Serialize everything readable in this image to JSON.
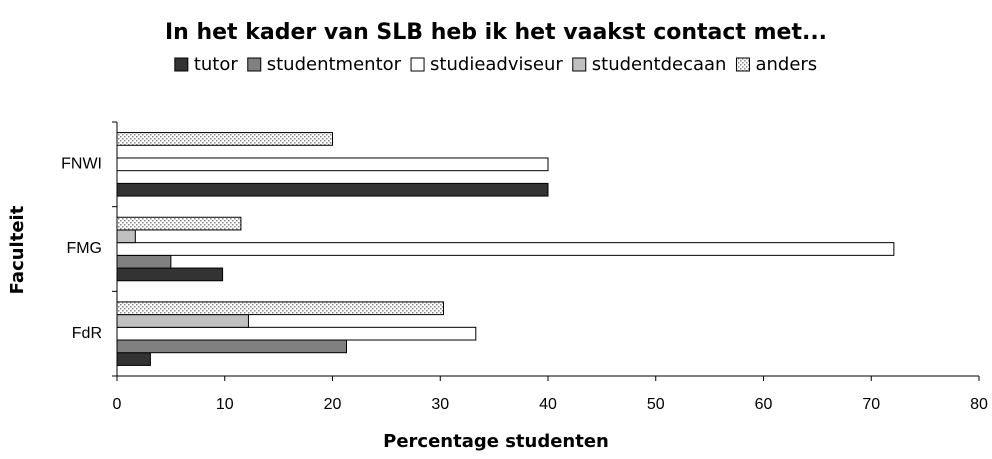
{
  "chart_data": {
    "type": "hbar",
    "title": "In het kader van SLB heb ik het vaakst contact met...",
    "xlabel": "Percentage studenten",
    "ylabel": "Faculteit",
    "categories": [
      "FdR",
      "FMG",
      "FNWI"
    ],
    "series": [
      {
        "name": "tutor",
        "color": "#333333",
        "values": [
          3.1,
          9.8,
          40
        ]
      },
      {
        "name": "studentmentor",
        "color": "#808080",
        "values": [
          21.3,
          5,
          0
        ]
      },
      {
        "name": "studieadviseur",
        "color": "#ffffff",
        "values": [
          33.3,
          72.1,
          40
        ]
      },
      {
        "name": "studentdecaan",
        "color": "#c0c0c0",
        "values": [
          12.2,
          1.7,
          0
        ]
      },
      {
        "name": "anders",
        "color": "#c0c0c0",
        "pattern": "dots",
        "values": [
          30.3,
          11.5,
          20
        ]
      }
    ],
    "xlim": [
      0,
      80
    ],
    "xticks": [
      0,
      10,
      20,
      30,
      40,
      50,
      60,
      70,
      80
    ],
    "legend": "top",
    "grid": false
  }
}
